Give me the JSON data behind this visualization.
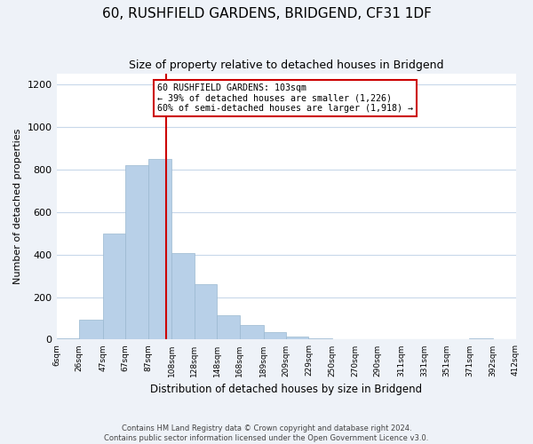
{
  "title": "60, RUSHFIELD GARDENS, BRIDGEND, CF31 1DF",
  "subtitle": "Size of property relative to detached houses in Bridgend",
  "xlabel": "Distribution of detached houses by size in Bridgend",
  "ylabel": "Number of detached properties",
  "bar_edges": [
    6,
    26,
    47,
    67,
    87,
    108,
    128,
    148,
    168,
    189,
    209,
    229,
    250,
    270,
    290,
    311,
    331,
    351,
    371,
    392,
    412
  ],
  "bar_heights": [
    5,
    95,
    500,
    820,
    850,
    405,
    260,
    115,
    70,
    35,
    15,
    5,
    0,
    0,
    0,
    0,
    0,
    0,
    5,
    0
  ],
  "bar_color": "#b8d0e8",
  "bar_edge_color": "#9ab8d0",
  "vline_x": 103,
  "vline_color": "#cc0000",
  "annotation_text": "60 RUSHFIELD GARDENS: 103sqm\n← 39% of detached houses are smaller (1,226)\n60% of semi-detached houses are larger (1,918) →",
  "annotation_box_color": "#ffffff",
  "annotation_box_edge_color": "#cc0000",
  "ylim": [
    0,
    1250
  ],
  "yticks": [
    0,
    200,
    400,
    600,
    800,
    1000,
    1200
  ],
  "tick_labels": [
    "6sqm",
    "26sqm",
    "47sqm",
    "67sqm",
    "87sqm",
    "108sqm",
    "128sqm",
    "148sqm",
    "168sqm",
    "189sqm",
    "209sqm",
    "229sqm",
    "250sqm",
    "270sqm",
    "290sqm",
    "311sqm",
    "331sqm",
    "351sqm",
    "371sqm",
    "392sqm",
    "412sqm"
  ],
  "footer_text": "Contains HM Land Registry data © Crown copyright and database right 2024.\nContains public sector information licensed under the Open Government Licence v3.0.",
  "background_color": "#eef2f8",
  "plot_bg_color": "#ffffff",
  "grid_color": "#c8d8ea"
}
